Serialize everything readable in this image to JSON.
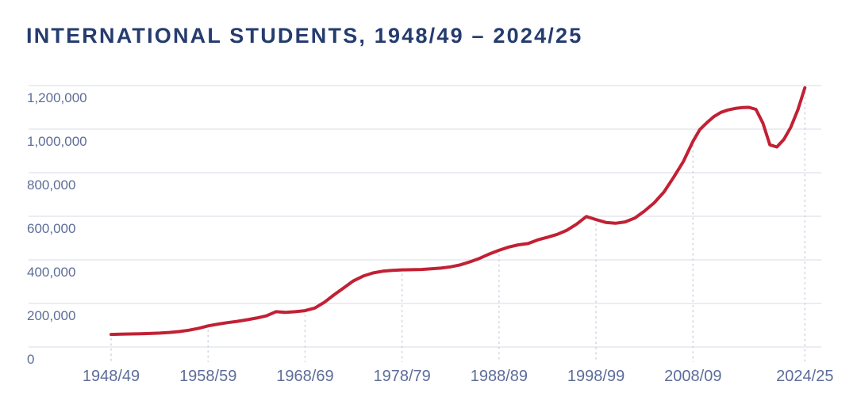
{
  "header": {
    "title": "INTERNATIONAL STUDENTS, 1948/49 – 2024/25"
  },
  "chart_data": {
    "type": "line",
    "title": "INTERNATIONAL STUDENTS, 1948/49 – 2024/25",
    "xlabel": "",
    "ylabel": "",
    "ylim": [
      0,
      1200000
    ],
    "grid": "horizontal solid gridlines; dashed vertical drop-lines from the series down to the axis at each labeled tick",
    "legend": "none",
    "y_ticks": [
      {
        "value": 0,
        "label": "0"
      },
      {
        "value": 200000,
        "label": "200,000"
      },
      {
        "value": 400000,
        "label": "400,000"
      },
      {
        "value": 600000,
        "label": "600,000"
      },
      {
        "value": 800000,
        "label": "800,000"
      },
      {
        "value": 1000000,
        "label": "1,000,000"
      },
      {
        "value": 1200000,
        "label": "1,200,000"
      }
    ],
    "x_ticks": [
      {
        "year": 1948,
        "label": "1948/49"
      },
      {
        "year": 1958,
        "label": "1958/59"
      },
      {
        "year": 1968,
        "label": "1968/69"
      },
      {
        "year": 1978,
        "label": "1978/79"
      },
      {
        "year": 1988,
        "label": "1988/89"
      },
      {
        "year": 1998,
        "label": "1998/99"
      },
      {
        "year": 2008,
        "label": "2008/09"
      },
      {
        "year": 2024,
        "label": "2024/25"
      }
    ],
    "series": [
      {
        "name": "International students",
        "x": [
          1948,
          1949,
          1950,
          1951,
          1952,
          1953,
          1954,
          1955,
          1956,
          1957,
          1958,
          1959,
          1960,
          1961,
          1962,
          1963,
          1964,
          1965,
          1966,
          1967,
          1968,
          1969,
          1970,
          1971,
          1972,
          1973,
          1974,
          1975,
          1976,
          1977,
          1978,
          1979,
          1980,
          1981,
          1982,
          1983,
          1984,
          1985,
          1986,
          1987,
          1988,
          1989,
          1990,
          1991,
          1992,
          1993,
          1994,
          1995,
          1996,
          1997,
          1998,
          1999,
          2000,
          2001,
          2002,
          2003,
          2004,
          2005,
          2006,
          2007,
          2008,
          2009,
          2010,
          2011,
          2012,
          2013,
          2014,
          2015,
          2016,
          2017,
          2018,
          2019,
          2020,
          2021,
          2022,
          2023,
          2024
        ],
        "values": [
          58000,
          59000,
          60000,
          61000,
          62000,
          64000,
          67000,
          71000,
          77000,
          86000,
          97000,
          105000,
          112000,
          118000,
          125000,
          133000,
          143000,
          162000,
          159000,
          162000,
          167000,
          179000,
          206000,
          240000,
          272000,
          304000,
          326000,
          340000,
          348000,
          352000,
          354000,
          355000,
          356000,
          359000,
          362000,
          368000,
          377000,
          391000,
          407000,
          427000,
          444000,
          459000,
          469000,
          475000,
          492000,
          504000,
          517000,
          536000,
          564000,
          599000,
          585000,
          572000,
          568000,
          574000,
          592000,
          624000,
          662000,
          711000,
          779000,
          851000,
          944000,
          999000,
          1030000,
          1058000,
          1077000,
          1088000,
          1095000,
          1099000,
          1100000,
          1091000,
          1028000,
          928000,
          918000,
          953000,
          1010000,
          1089000,
          1190000
        ]
      }
    ],
    "colors": {
      "line": "#c22034",
      "title": "#253c6e",
      "axis_label": "#5d6d99",
      "gridline": "#dfe2ea",
      "tick_dash": "#c7cdde",
      "background": "#ffffff"
    }
  }
}
